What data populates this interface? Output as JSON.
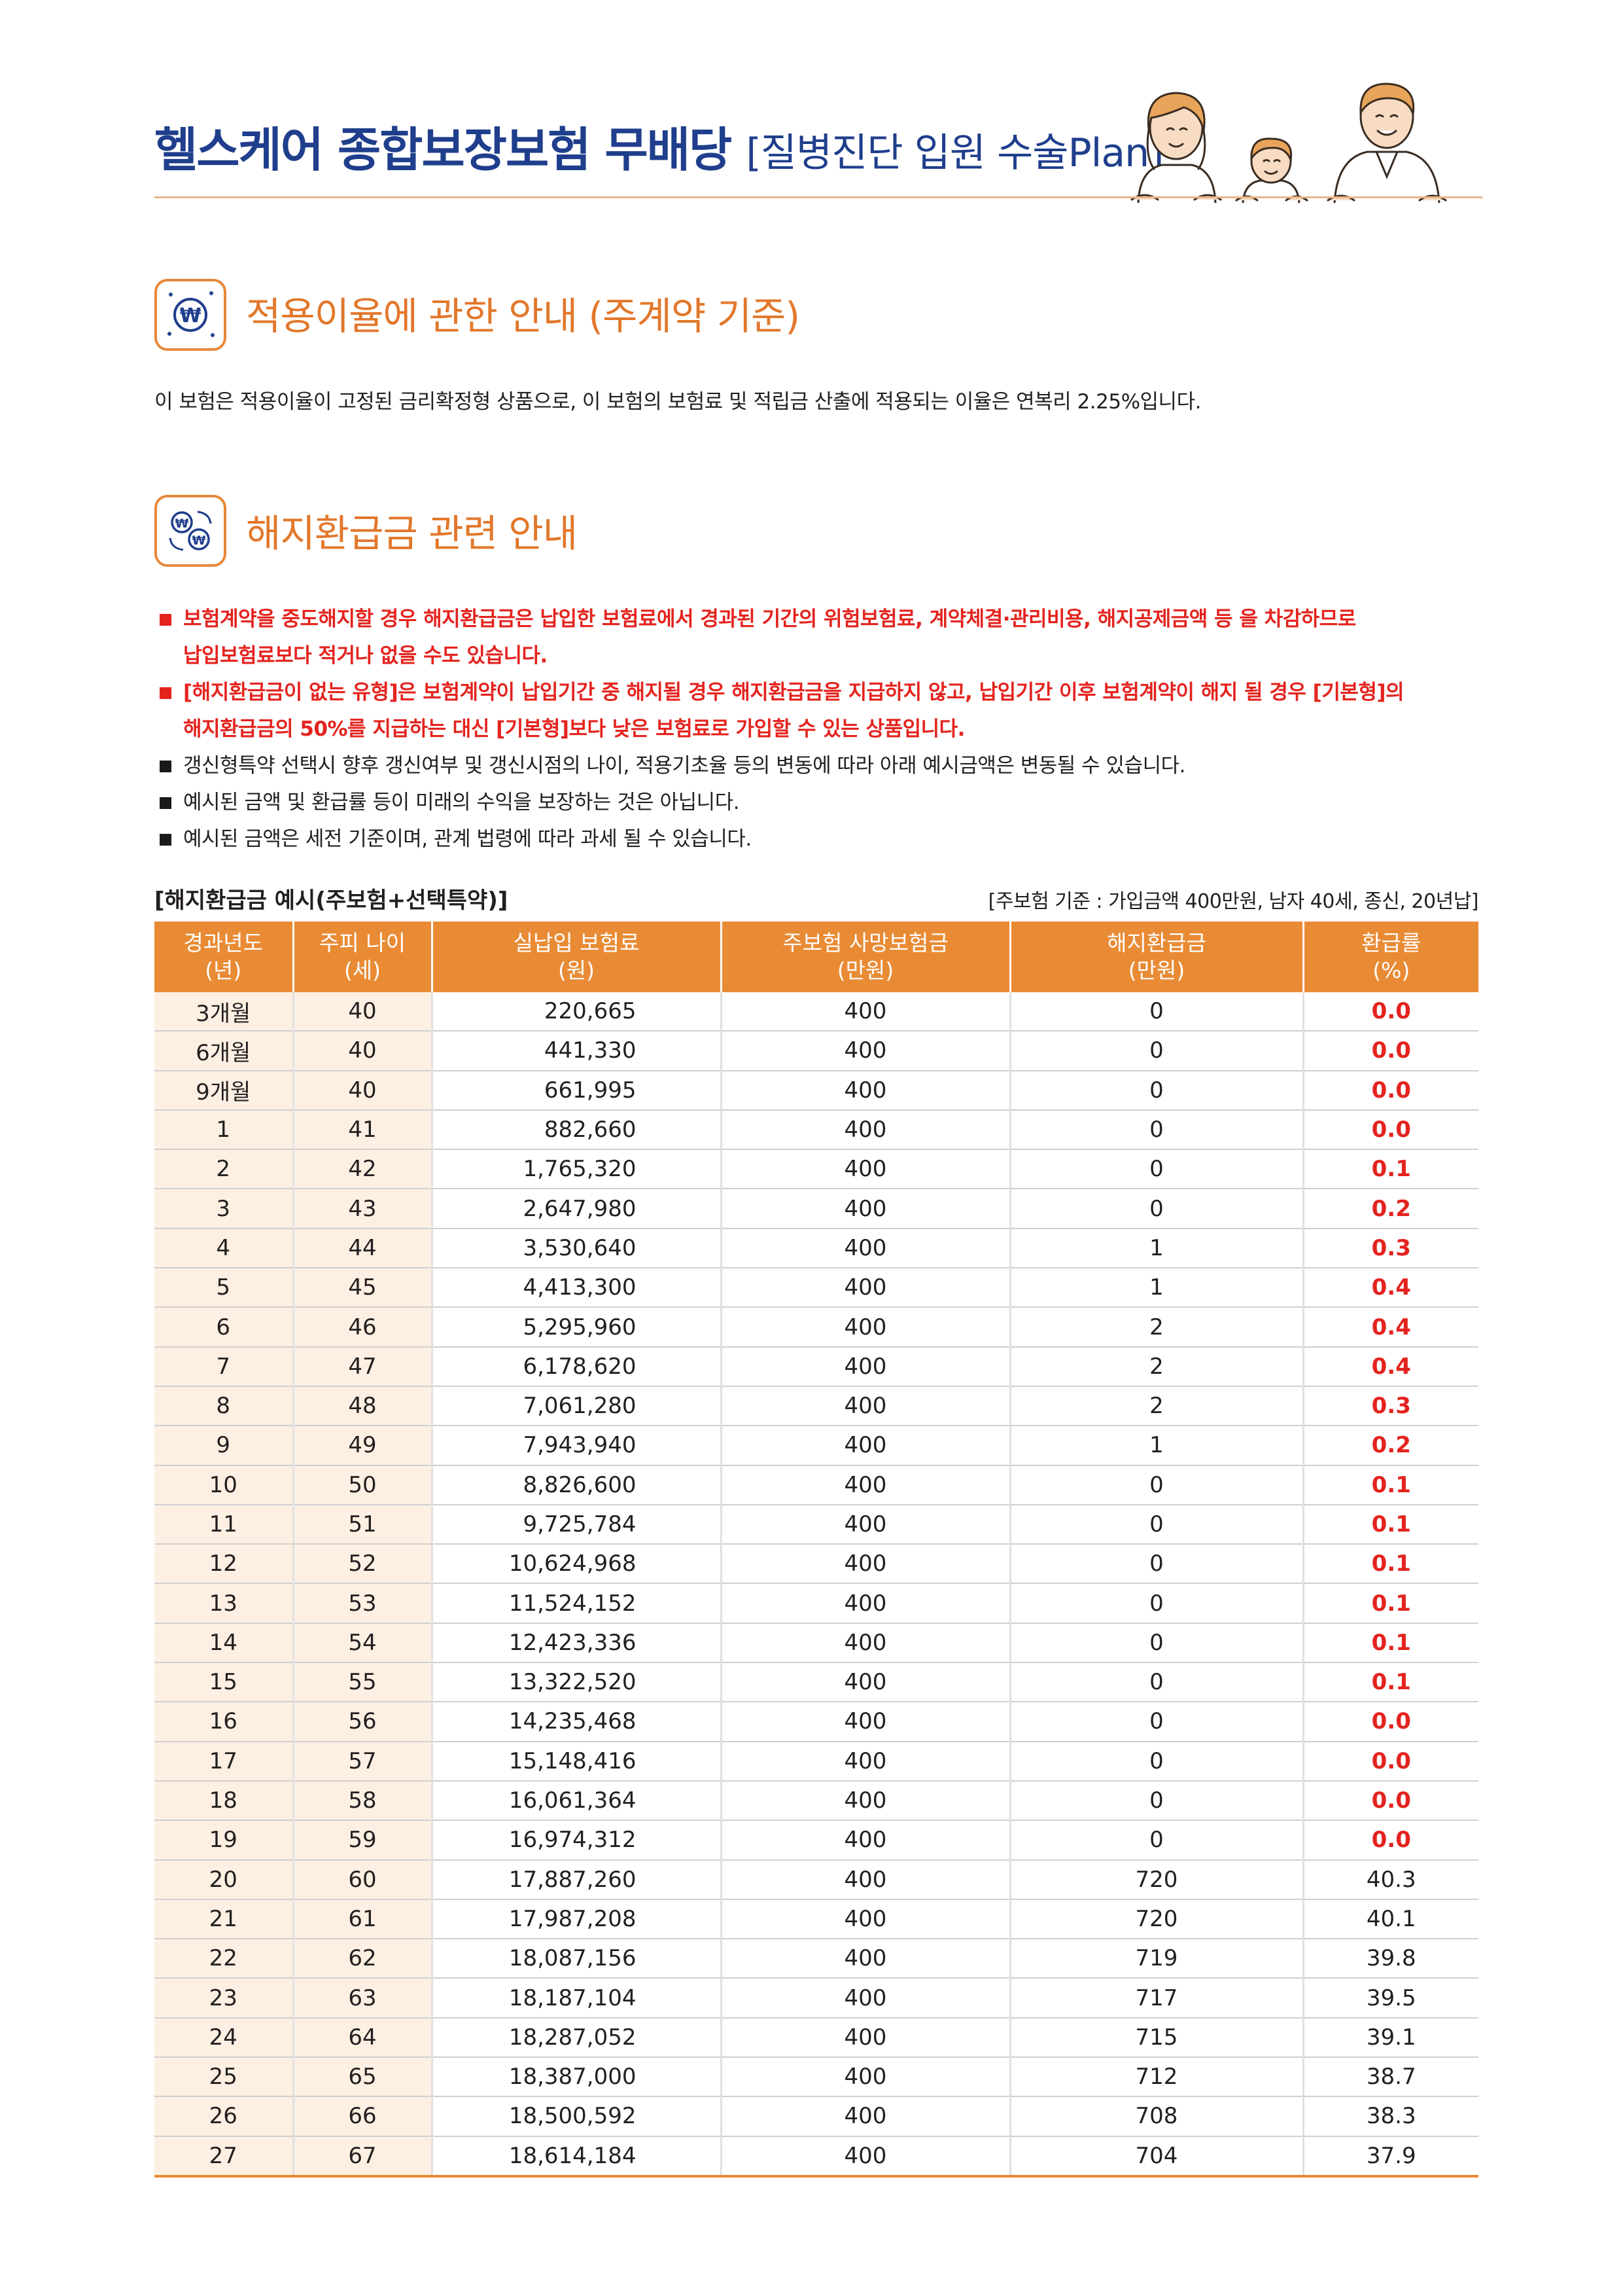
{
  "header": {
    "title_main": "헬스케어 종합보장보험 무배당",
    "title_sub": "[질병진단 입원 수술Plan]"
  },
  "section1": {
    "title": "적용이율에 관한 안내 (주계약 기준)",
    "icon": "won-coin-icon",
    "text": "이 보험은 적용이율이 고정된 금리확정형 상품으로, 이 보험의 보험료 및 적립금 산출에 적용되는 이율은 연복리 2.25%입니다."
  },
  "section2": {
    "title": "해지환급금 관련 안내",
    "icon": "won-exchange-icon",
    "bullets": [
      {
        "style": "red",
        "lines": [
          "보험계약을 중도해지할 경우 해지환급금은 납입한 보험료에서 경과된 기간의 위험보험료, 계약체결·관리비용, 해지공제금액 등 을 차감하므로",
          "납입보험료보다 적거나 없을 수도 있습니다."
        ]
      },
      {
        "style": "red",
        "lines": [
          "[해지환급금이 없는 유형]은 보험계약이 납입기간 중 해지될 경우 해지환급금을 지급하지 않고, 납입기간 이후 보험계약이 해지 될 경우 [기본형]의",
          "해지환급금의 50%를 지급하는 대신 [기본형]보다 낮은 보험료로 가입할 수 있는 상품입니다."
        ]
      },
      {
        "style": "normal",
        "lines": [
          "갱신형특약 선택시 향후 갱신여부 및 갱신시점의 나이, 적용기초율 등의 변동에 따라 아래 예시금액은 변동될 수 있습니다."
        ]
      },
      {
        "style": "normal",
        "lines": [
          "예시된 금액 및 환급률 등이 미래의 수익을 보장하는 것은 아닙니다."
        ]
      },
      {
        "style": "normal",
        "lines": [
          "예시된 금액은 세전 기준이며, 관계 법령에 따라 과세 될 수 있습니다."
        ]
      }
    ]
  },
  "table": {
    "title": "[해지환급금 예시(주보험+선택특약)]",
    "basis": "[주보험 기준 : 가입금액 400만원, 남자 40세, 종신, 20년납]",
    "headers": [
      [
        "경과년도",
        "(년)"
      ],
      [
        "주피 나이",
        "(세)"
      ],
      [
        "실납입 보험료",
        "(원)"
      ],
      [
        "주보험 사망보험금",
        "(만원)"
      ],
      [
        "해지환급금",
        "(만원)"
      ],
      [
        "환급률",
        "(%)"
      ]
    ],
    "rows": [
      [
        "3개월",
        "40",
        "220,665",
        "400",
        "0",
        "0.0"
      ],
      [
        "6개월",
        "40",
        "441,330",
        "400",
        "0",
        "0.0"
      ],
      [
        "9개월",
        "40",
        "661,995",
        "400",
        "0",
        "0.0"
      ],
      [
        "1",
        "41",
        "882,660",
        "400",
        "0",
        "0.0"
      ],
      [
        "2",
        "42",
        "1,765,320",
        "400",
        "0",
        "0.1"
      ],
      [
        "3",
        "43",
        "2,647,980",
        "400",
        "0",
        "0.2"
      ],
      [
        "4",
        "44",
        "3,530,640",
        "400",
        "1",
        "0.3"
      ],
      [
        "5",
        "45",
        "4,413,300",
        "400",
        "1",
        "0.4"
      ],
      [
        "6",
        "46",
        "5,295,960",
        "400",
        "2",
        "0.4"
      ],
      [
        "7",
        "47",
        "6,178,620",
        "400",
        "2",
        "0.4"
      ],
      [
        "8",
        "48",
        "7,061,280",
        "400",
        "2",
        "0.3"
      ],
      [
        "9",
        "49",
        "7,943,940",
        "400",
        "1",
        "0.2"
      ],
      [
        "10",
        "50",
        "8,826,600",
        "400",
        "0",
        "0.1"
      ],
      [
        "11",
        "51",
        "9,725,784",
        "400",
        "0",
        "0.1"
      ],
      [
        "12",
        "52",
        "10,624,968",
        "400",
        "0",
        "0.1"
      ],
      [
        "13",
        "53",
        "11,524,152",
        "400",
        "0",
        "0.1"
      ],
      [
        "14",
        "54",
        "12,423,336",
        "400",
        "0",
        "0.1"
      ],
      [
        "15",
        "55",
        "13,322,520",
        "400",
        "0",
        "0.1"
      ],
      [
        "16",
        "56",
        "14,235,468",
        "400",
        "0",
        "0.0"
      ],
      [
        "17",
        "57",
        "15,148,416",
        "400",
        "0",
        "0.0"
      ],
      [
        "18",
        "58",
        "16,061,364",
        "400",
        "0",
        "0.0"
      ],
      [
        "19",
        "59",
        "16,974,312",
        "400",
        "0",
        "0.0"
      ],
      [
        "20",
        "60",
        "17,887,260",
        "400",
        "720",
        "40.3"
      ],
      [
        "21",
        "61",
        "17,987,208",
        "400",
        "720",
        "40.1"
      ],
      [
        "22",
        "62",
        "18,087,156",
        "400",
        "719",
        "39.8"
      ],
      [
        "23",
        "63",
        "18,187,104",
        "400",
        "717",
        "39.5"
      ],
      [
        "24",
        "64",
        "18,287,052",
        "400",
        "715",
        "39.1"
      ],
      [
        "25",
        "65",
        "18,387,000",
        "400",
        "712",
        "38.7"
      ],
      [
        "26",
        "66",
        "18,500,592",
        "400",
        "708",
        "38.3"
      ],
      [
        "27",
        "67",
        "18,614,184",
        "400",
        "704",
        "37.9"
      ]
    ],
    "red_rate_rows": 22
  },
  "colors": {
    "title_blue": "#1f3e8c",
    "accent_orange": "#e98b35",
    "alert_red": "#e4231e",
    "row_tint": "#fdf0e3"
  },
  "illustration": "family-illustration"
}
